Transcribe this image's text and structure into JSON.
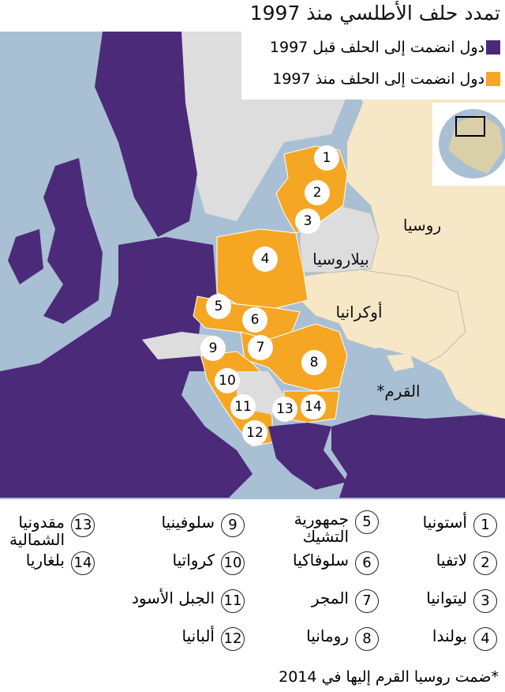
{
  "title": "تمدد حلف الأطلسي منذ 1997",
  "legend": [
    {
      "label": "دول انضمت إلى الحلف قبل 1997",
      "color": "#4b2a7a"
    },
    {
      "label": "دول انضمت إلى الحلف منذ 1997",
      "color": "#f5a623"
    }
  ],
  "colors": {
    "sea": "#a9bfd3",
    "pre1997": "#4b2a7a",
    "post1997": "#f5a623",
    "russia": "#f6e7c6",
    "other": "#dddddd"
  },
  "map_labels": {
    "russia": "روسيا",
    "belarus": "بيلاروسيا",
    "ukraine": "أوكرانيا",
    "crimea": "القرم*"
  },
  "countries": [
    {
      "n": "1",
      "name": "أستونيا"
    },
    {
      "n": "2",
      "name": "لاتفيا"
    },
    {
      "n": "3",
      "name": "ليتوانيا"
    },
    {
      "n": "4",
      "name": "بولندا"
    },
    {
      "n": "5",
      "name": "جمهورية التشيك"
    },
    {
      "n": "6",
      "name": "سلوفاكيا"
    },
    {
      "n": "7",
      "name": "المجر"
    },
    {
      "n": "8",
      "name": "رومانيا"
    },
    {
      "n": "9",
      "name": "سلوفينيا"
    },
    {
      "n": "10",
      "name": "كرواتيا"
    },
    {
      "n": "11",
      "name": "الجبل الأسود"
    },
    {
      "n": "12",
      "name": "ألبانيا"
    },
    {
      "n": "13",
      "name": "مقدونيا الشمالية"
    },
    {
      "n": "14",
      "name": "بلغاريا"
    }
  ],
  "footnote": "*ضمت روسيا القرم إليها في 2014"
}
